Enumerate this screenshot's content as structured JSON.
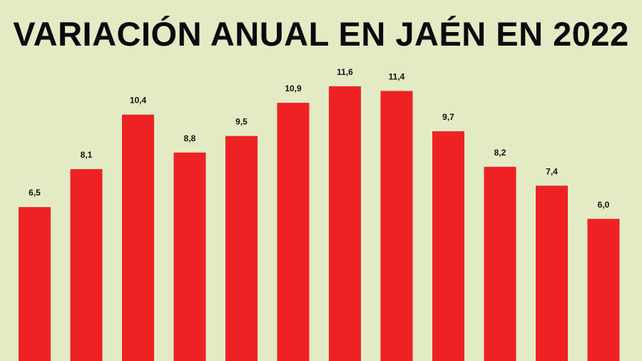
{
  "colors": {
    "background": "#e3ebc5",
    "bar": "#ee2224",
    "text": "#0a0a0a"
  },
  "chart_data": {
    "type": "bar",
    "title": "VARIACIÓN ANUAL EN JAÉN EN 2022",
    "xlabel": "",
    "ylabel": "",
    "grid": false,
    "legend": "none",
    "value_labels": [
      "6,5",
      "8,1",
      "10,4",
      "8,8",
      "9,5",
      "10,9",
      "11,6",
      "11,4",
      "9,7",
      "8,2",
      "7,4",
      "6,0"
    ],
    "values": [
      6.5,
      8.1,
      10.4,
      8.8,
      9.5,
      10.9,
      11.6,
      11.4,
      9.7,
      8.2,
      7.4,
      6.0
    ]
  }
}
